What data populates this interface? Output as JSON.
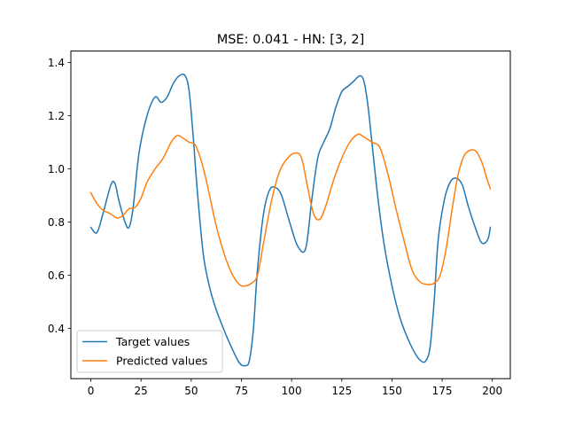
{
  "chart_data": {
    "type": "line",
    "title": "MSE: 0.041 - HN: [3, 2]",
    "xlabel": "",
    "ylabel": "",
    "xlim": [
      -9.95,
      208.95
    ],
    "ylim": [
      0.211,
      1.443
    ],
    "xticks": [
      0,
      25,
      50,
      75,
      100,
      125,
      150,
      175,
      200
    ],
    "xtick_labels": [
      "0",
      "25",
      "50",
      "75",
      "100",
      "125",
      "150",
      "175",
      "200"
    ],
    "yticks": [
      0.4,
      0.6,
      0.8,
      1.0,
      1.2,
      1.4
    ],
    "ytick_labels": [
      "0.4",
      "0.6",
      "0.8",
      "1.0",
      "1.2",
      "1.4"
    ],
    "grid": false,
    "legend_position": "lower-left",
    "series": [
      {
        "name": "Target values",
        "color": "#1f77b4",
        "x": [
          0,
          3,
          6,
          10,
          12,
          14,
          17,
          19,
          21,
          24,
          28,
          32,
          35,
          38,
          41,
          44,
          47,
          49,
          51,
          53,
          56,
          59,
          62,
          66,
          70,
          74,
          77,
          79,
          81,
          83,
          86,
          89,
          92,
          95,
          99,
          103,
          107,
          110,
          113,
          116,
          119,
          122,
          125,
          128,
          131,
          134,
          136,
          138,
          140,
          143,
          146,
          150,
          154,
          158,
          162,
          165,
          167,
          169,
          171,
          173,
          176,
          179,
          182,
          185,
          188,
          191,
          194,
          196,
          198,
          199
        ],
        "y": [
          0.78,
          0.76,
          0.83,
          0.94,
          0.945,
          0.88,
          0.8,
          0.78,
          0.85,
          1.06,
          1.2,
          1.27,
          1.25,
          1.27,
          1.32,
          1.35,
          1.35,
          1.29,
          1.12,
          0.92,
          0.68,
          0.56,
          0.48,
          0.4,
          0.33,
          0.27,
          0.26,
          0.28,
          0.4,
          0.62,
          0.83,
          0.92,
          0.93,
          0.9,
          0.8,
          0.71,
          0.7,
          0.88,
          1.04,
          1.1,
          1.15,
          1.23,
          1.29,
          1.31,
          1.33,
          1.35,
          1.33,
          1.24,
          1.1,
          0.89,
          0.72,
          0.56,
          0.44,
          0.36,
          0.3,
          0.275,
          0.28,
          0.33,
          0.5,
          0.73,
          0.88,
          0.95,
          0.965,
          0.94,
          0.86,
          0.79,
          0.73,
          0.72,
          0.74,
          0.78
        ]
      },
      {
        "name": "Predicted values",
        "color": "#ff7f0e",
        "x": [
          0,
          3,
          6,
          10,
          13,
          16,
          19,
          22,
          25,
          28,
          32,
          36,
          40,
          43,
          46,
          49,
          52,
          55,
          58,
          62,
          66,
          70,
          74,
          77,
          80,
          83,
          86,
          90,
          94,
          98,
          102,
          105,
          108,
          111,
          114,
          117,
          121,
          125,
          129,
          133,
          136,
          140,
          144,
          148,
          152,
          156,
          160,
          164,
          168,
          171,
          174,
          177,
          180,
          183,
          186,
          189,
          192,
          195,
          197,
          199
        ],
        "y": [
          0.91,
          0.87,
          0.845,
          0.83,
          0.815,
          0.825,
          0.85,
          0.855,
          0.89,
          0.95,
          1.0,
          1.04,
          1.1,
          1.125,
          1.115,
          1.1,
          1.09,
          1.03,
          0.94,
          0.8,
          0.69,
          0.61,
          0.565,
          0.56,
          0.57,
          0.6,
          0.72,
          0.88,
          0.99,
          1.04,
          1.06,
          1.04,
          0.93,
          0.83,
          0.81,
          0.86,
          0.96,
          1.04,
          1.1,
          1.13,
          1.12,
          1.1,
          1.08,
          0.98,
          0.85,
          0.73,
          0.62,
          0.575,
          0.565,
          0.57,
          0.6,
          0.7,
          0.85,
          0.98,
          1.05,
          1.07,
          1.065,
          1.02,
          0.97,
          0.925
        ]
      }
    ]
  }
}
